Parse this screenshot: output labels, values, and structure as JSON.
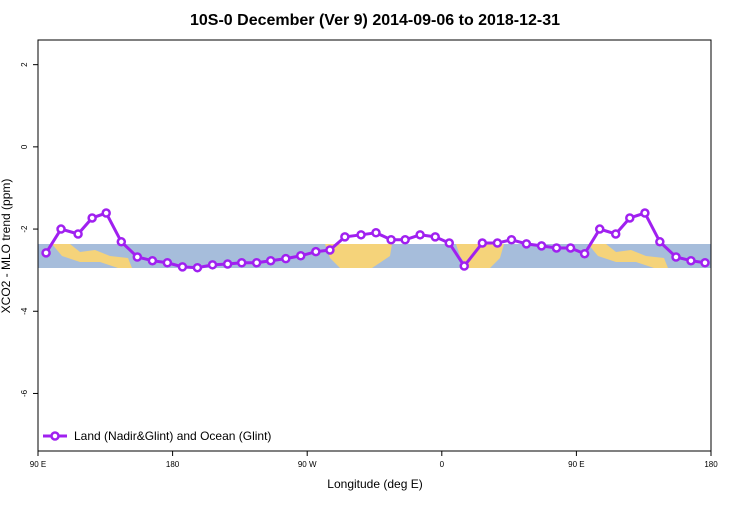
{
  "chart_data": {
    "type": "line",
    "title": "10S-0 December (Ver 9)   2014-09-06 to 2018-12-31",
    "xlabel": "Longitude (deg E)",
    "ylabel": "XCO2 - MLO trend (ppm)",
    "xlim": [
      90,
      540
    ],
    "ylim": [
      -7.4,
      2.6
    ],
    "xticks": [
      {
        "value": 90,
        "label": "90 E"
      },
      180,
      {
        "value": 270,
        "label": "90 W"
      },
      {
        "value": 360,
        "label": "0"
      },
      {
        "value": 450,
        "label": "90 E"
      },
      {
        "value": 540,
        "label": "180"
      }
    ],
    "yticks": [
      2,
      0,
      -2,
      -4,
      -6
    ],
    "legend_position": "bottom-left",
    "x": [
      95.4,
      105.4,
      116.8,
      126.2,
      135.6,
      145.7,
      156.4,
      166.5,
      176.5,
      186.6,
      196.6,
      206.7,
      216.8,
      226.2,
      236.2,
      245.6,
      255.7,
      265.7,
      275.8,
      285.2,
      295.2,
      306,
      316,
      326.1,
      335.5,
      345.5,
      355.6,
      365,
      375,
      387.1,
      397.2,
      406.6,
      416.6,
      426.7,
      436.7,
      446.1,
      455.5,
      465.6,
      476.3,
      485.7,
      495.8,
      505.8,
      516.6,
      526.6,
      536
    ],
    "series": [
      {
        "name": "Land (Nadir&Glint) and Ocean (Glint)",
        "color": "#a020f0",
        "values": [
          -2.58,
          -2.0,
          -2.12,
          -1.73,
          -1.61,
          -2.31,
          -2.68,
          -2.77,
          -2.82,
          -2.92,
          -2.94,
          -2.87,
          -2.85,
          -2.82,
          -2.82,
          -2.77,
          -2.72,
          -2.65,
          -2.55,
          -2.51,
          -2.19,
          -2.14,
          -2.09,
          -2.26,
          -2.26,
          -2.14,
          -2.19,
          -2.34,
          -2.9,
          -2.34,
          -2.34,
          -2.26,
          -2.36,
          -2.41,
          -2.46,
          -2.46,
          -2.6,
          -2.0,
          -2.12,
          -1.73,
          -1.61,
          -2.31,
          -2.68,
          -2.77,
          -2.82
        ]
      }
    ]
  }
}
